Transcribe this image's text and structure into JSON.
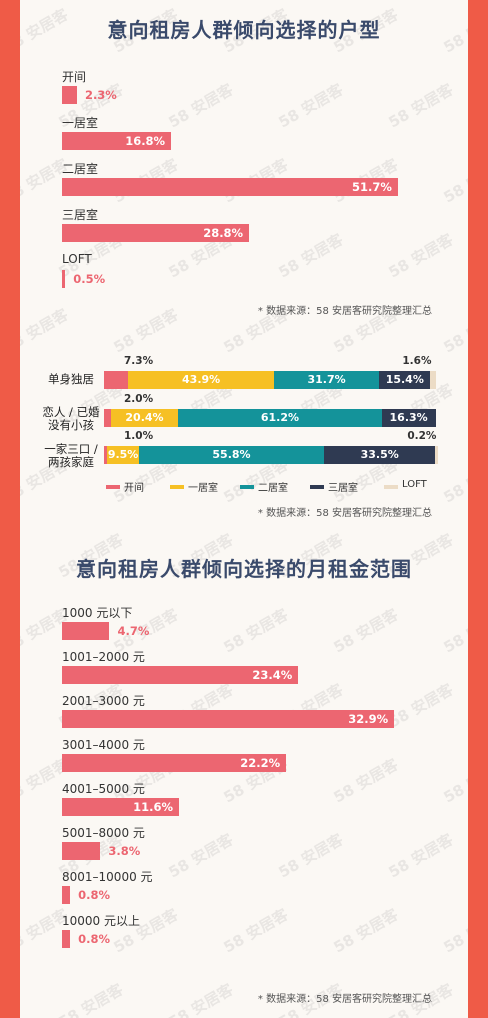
{
  "watermark": "58 安居客",
  "chart_data": [
    {
      "type": "bar",
      "title": "意向租房人群倾向选择的户型",
      "categories": [
        "开间",
        "一居室",
        "二居室",
        "三居室",
        "LOFT"
      ],
      "values": [
        2.3,
        16.8,
        51.7,
        28.8,
        0.5
      ],
      "value_labels": [
        "2.3%",
        "16.8%",
        "51.7%",
        "28.8%",
        "0.5%"
      ],
      "source": "* 数据来源：58 安居客研究院整理汇总",
      "color": "#ec6671"
    },
    {
      "type": "bar",
      "stacked": true,
      "categories": [
        "单身独居",
        "恋人 / 已婚\n没有小孩",
        "一家三口 /\n两孩家庭"
      ],
      "series": [
        {
          "name": "开间",
          "color": "#ec6671",
          "values": [
            7.3,
            2.0,
            1.0
          ],
          "labels": [
            "7.3%",
            "2.0%",
            "1.0%"
          ]
        },
        {
          "name": "一居室",
          "color": "#f6c024",
          "values": [
            43.9,
            20.4,
            9.5
          ],
          "labels": [
            "43.9%",
            "20.4%",
            "9.5%"
          ]
        },
        {
          "name": "二居室",
          "color": "#14939a",
          "values": [
            31.7,
            61.2,
            55.8
          ],
          "labels": [
            "31.7%",
            "61.2%",
            "55.8%"
          ]
        },
        {
          "name": "三居室",
          "color": "#2f3a52",
          "values": [
            15.4,
            16.3,
            33.5
          ],
          "labels": [
            "15.4%",
            "16.3%",
            "33.5%"
          ]
        },
        {
          "name": "LOFT",
          "color": "#ecdcc6",
          "values": [
            1.6,
            0.0,
            0.2
          ],
          "labels": [
            "1.6%",
            "",
            "0.2%"
          ]
        }
      ],
      "source": "* 数据来源：58 安居客研究院整理汇总",
      "legend_position": "bottom"
    },
    {
      "type": "bar",
      "title": "意向租房人群倾向选择的月租金范围",
      "categories": [
        "1000 元以下",
        "1001–2000 元",
        "2001–3000 元",
        "3001–4000 元",
        "4001–5000 元",
        "5001–8000 元",
        "8001–10000 元",
        "10000 元以上"
      ],
      "values": [
        4.7,
        23.4,
        32.9,
        22.2,
        11.6,
        3.8,
        0.8,
        0.8
      ],
      "value_labels": [
        "4.7%",
        "23.4%",
        "32.9%",
        "22.2%",
        "11.6%",
        "3.8%",
        "0.8%",
        "0.8%"
      ],
      "source": "* 数据来源：58 安居客研究院整理汇总",
      "color": "#ec6671"
    }
  ]
}
